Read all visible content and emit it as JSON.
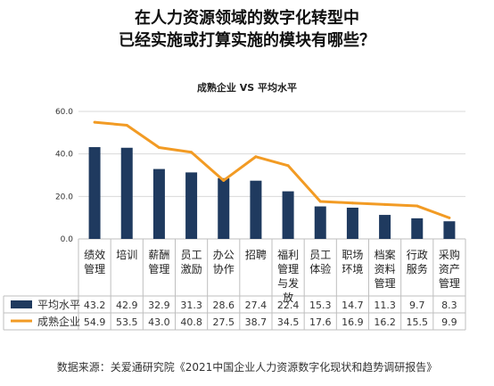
{
  "title_line1": "在人力资源领域的数字化转型中",
  "title_line2": "已经实施或打算实施的模块有哪些？",
  "source": "数据来源：关爱通研究院《2021中国企业人力资源数字化现状和趋势调研报告》",
  "colors": {
    "bar": "#1f3a5f",
    "line": "#f29b24",
    "grid": "#d9d9d9",
    "border": "#bfbfbf"
  },
  "chart_data": {
    "type": "bar",
    "title": "成熟企业 VS 平均水平",
    "categories": [
      [
        "绩效",
        "管理"
      ],
      [
        "培训"
      ],
      [
        "薪酬",
        "管理"
      ],
      [
        "员工",
        "激励"
      ],
      [
        "办公",
        "协作"
      ],
      [
        "招聘"
      ],
      [
        "福利",
        "管理",
        "与发",
        "放"
      ],
      [
        "员工",
        "体验"
      ],
      [
        "职场",
        "环境"
      ],
      [
        "档案",
        "资料",
        "管理"
      ],
      [
        "行政",
        "服务"
      ],
      [
        "采购",
        "资产",
        "管理"
      ]
    ],
    "yticks": [
      "0.0",
      "20.0",
      "40.0",
      "60.0"
    ],
    "ylim": [
      0,
      60
    ],
    "grid": true,
    "series": [
      {
        "name": "平均水平",
        "type": "bar",
        "values": [
          43.2,
          42.9,
          32.9,
          31.3,
          28.6,
          27.4,
          22.4,
          15.3,
          14.7,
          11.3,
          9.7,
          8.3
        ],
        "labels": [
          "43.2",
          "42.9",
          "32.9",
          "31.3",
          "28.6",
          "27.4",
          "22.4",
          "15.3",
          "14.7",
          "11.3",
          "9.7",
          "8.3"
        ]
      },
      {
        "name": "成熟企业",
        "type": "line",
        "values": [
          54.9,
          53.5,
          43.0,
          40.8,
          27.5,
          38.7,
          34.5,
          17.6,
          16.9,
          16.2,
          15.5,
          9.9
        ],
        "labels": [
          "54.9",
          "53.5",
          "43.0",
          "40.8",
          "27.5",
          "38.7",
          "34.5",
          "17.6",
          "16.9",
          "16.2",
          "15.5",
          "9.9"
        ]
      }
    ]
  }
}
